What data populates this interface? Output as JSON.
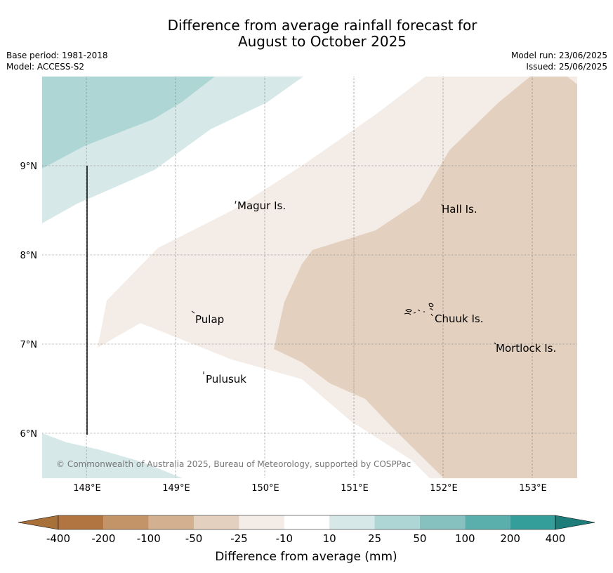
{
  "title": {
    "line1": "Difference from average rainfall forecast for",
    "line2": "August to October 2025"
  },
  "meta": {
    "base_period": "Base period: 1981-2018",
    "model": "Model: ACCESS-S2",
    "model_run": "Model run: 23/06/2025",
    "issued": "Issued: 25/06/2025"
  },
  "axes": {
    "lon_ticks": [
      "148°E",
      "149°E",
      "150°E",
      "151°E",
      "152°E",
      "153°E"
    ],
    "lat_ticks": [
      "9°N",
      "8°N",
      "7°N",
      "6°N"
    ]
  },
  "places": {
    "magur": "Magur Is.",
    "hall": "Hall Is.",
    "pulap": "Pulap",
    "chuuk": "Chuuk Is.",
    "pulusuk": "Pulusuk",
    "mortlock": "Mortlock Is."
  },
  "credit": "© Commonwealth of Australia 2025, Bureau of Meteorology, supported by COSPPac",
  "colorbar": {
    "title": "Difference from average (mm)",
    "labels": [
      "-400",
      "-200",
      "-100",
      "-50",
      "-25",
      "-10",
      "10",
      "25",
      "50",
      "100",
      "200",
      "400"
    ],
    "colors": [
      "#a9713a",
      "#b07540",
      "#c39468",
      "#d3b08f",
      "#e3d0be",
      "#f4ece6",
      "#ffffff",
      "#d6e9e8",
      "#aed6d5",
      "#86c1c0",
      "#5aaeab",
      "#349e9a",
      "#1f7d79"
    ]
  }
}
